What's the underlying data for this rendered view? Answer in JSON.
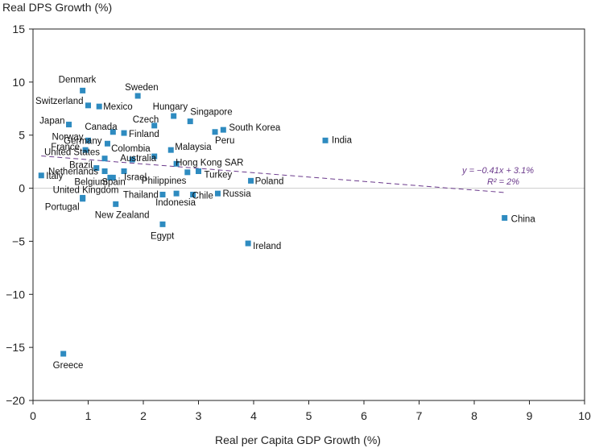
{
  "chart_data": {
    "type": "scatter",
    "ylabel": "Real DPS Growth (%)",
    "xlabel": "Real per Capita GDP Growth (%)",
    "xlim": [
      0,
      10
    ],
    "ylim": [
      -20,
      15
    ],
    "xticks": [
      "0",
      "1",
      "2",
      "3",
      "4",
      "5",
      "6",
      "7",
      "8",
      "9",
      "10"
    ],
    "yticks": [
      "15",
      "10",
      "5",
      "0",
      "−5",
      "−10",
      "−15",
      "−20"
    ],
    "grid": false,
    "colors": {
      "point": "#2e8bc0",
      "trendline": "#6b3a8c",
      "zero_line": "#cccccc",
      "axis": "#222222"
    },
    "trendline": {
      "slope": -0.41,
      "intercept": 3.1,
      "x_range": [
        0.15,
        8.55
      ],
      "equation": "y = −0.41x + 3.1%",
      "r2": "R² = 2%"
    },
    "points": [
      {
        "label": "Denmark",
        "x": 0.9,
        "y": 9.2
      },
      {
        "label": "Sweden",
        "x": 1.9,
        "y": 8.7
      },
      {
        "label": "Switzerland",
        "x": 1.0,
        "y": 7.8
      },
      {
        "label": "Mexico",
        "x": 1.2,
        "y": 7.7
      },
      {
        "label": "Hungary",
        "x": 2.55,
        "y": 6.8
      },
      {
        "label": "Singapore",
        "x": 2.85,
        "y": 6.3
      },
      {
        "label": "Japan",
        "x": 0.65,
        "y": 6.0
      },
      {
        "label": "Czech",
        "x": 2.2,
        "y": 5.9
      },
      {
        "label": "South Korea",
        "x": 3.45,
        "y": 5.5
      },
      {
        "label": "Canada",
        "x": 1.45,
        "y": 5.3
      },
      {
        "label": "Peru",
        "x": 3.3,
        "y": 5.3
      },
      {
        "label": "Finland",
        "x": 1.65,
        "y": 5.2
      },
      {
        "label": "India",
        "x": 5.3,
        "y": 4.5
      },
      {
        "label": "Norway",
        "x": 1.0,
        "y": 4.5
      },
      {
        "label": "Germany",
        "x": 1.35,
        "y": 4.2
      },
      {
        "label": "France",
        "x": 0.95,
        "y": 3.6
      },
      {
        "label": "Malaysia",
        "x": 2.5,
        "y": 3.6
      },
      {
        "label": "Colombia",
        "x": 2.2,
        "y": 3.0
      },
      {
        "label": "United States",
        "x": 1.3,
        "y": 2.8
      },
      {
        "label": "Australia",
        "x": 1.8,
        "y": 2.7
      },
      {
        "label": "Hong Kong SAR",
        "x": 2.6,
        "y": 2.3
      },
      {
        "label": "Brazil",
        "x": 1.15,
        "y": 1.9
      },
      {
        "label": "Netherlands",
        "x": 1.3,
        "y": 1.6
      },
      {
        "label": "Israel",
        "x": 1.65,
        "y": 1.6
      },
      {
        "label": "Turkey",
        "x": 3.0,
        "y": 1.6
      },
      {
        "label": "Philippines",
        "x": 2.8,
        "y": 1.5
      },
      {
        "label": "Italy",
        "x": 0.15,
        "y": 1.2
      },
      {
        "label": "Belgium",
        "x": 1.4,
        "y": 1.0
      },
      {
        "label": "Spain",
        "x": 1.45,
        "y": 1.0
      },
      {
        "label": "Poland",
        "x": 3.95,
        "y": 0.7
      },
      {
        "label": "Thailand",
        "x": 2.35,
        "y": -0.6
      },
      {
        "label": "United Kingdom",
        "x": 0.9,
        "y": -0.9
      },
      {
        "label": "Indonesia",
        "x": 2.6,
        "y": -0.5
      },
      {
        "label": "Chile",
        "x": 2.9,
        "y": -0.6
      },
      {
        "label": "Russia",
        "x": 3.35,
        "y": -0.5
      },
      {
        "label": "Portugal",
        "x": 0.9,
        "y": -1.0
      },
      {
        "label": "New Zealand",
        "x": 1.5,
        "y": -1.5
      },
      {
        "label": "China",
        "x": 8.55,
        "y": -2.8
      },
      {
        "label": "Egypt",
        "x": 2.35,
        "y": -3.4
      },
      {
        "label": "Ireland",
        "x": 3.9,
        "y": -5.2
      },
      {
        "label": "Greece",
        "x": 0.55,
        "y": -15.6
      }
    ]
  }
}
